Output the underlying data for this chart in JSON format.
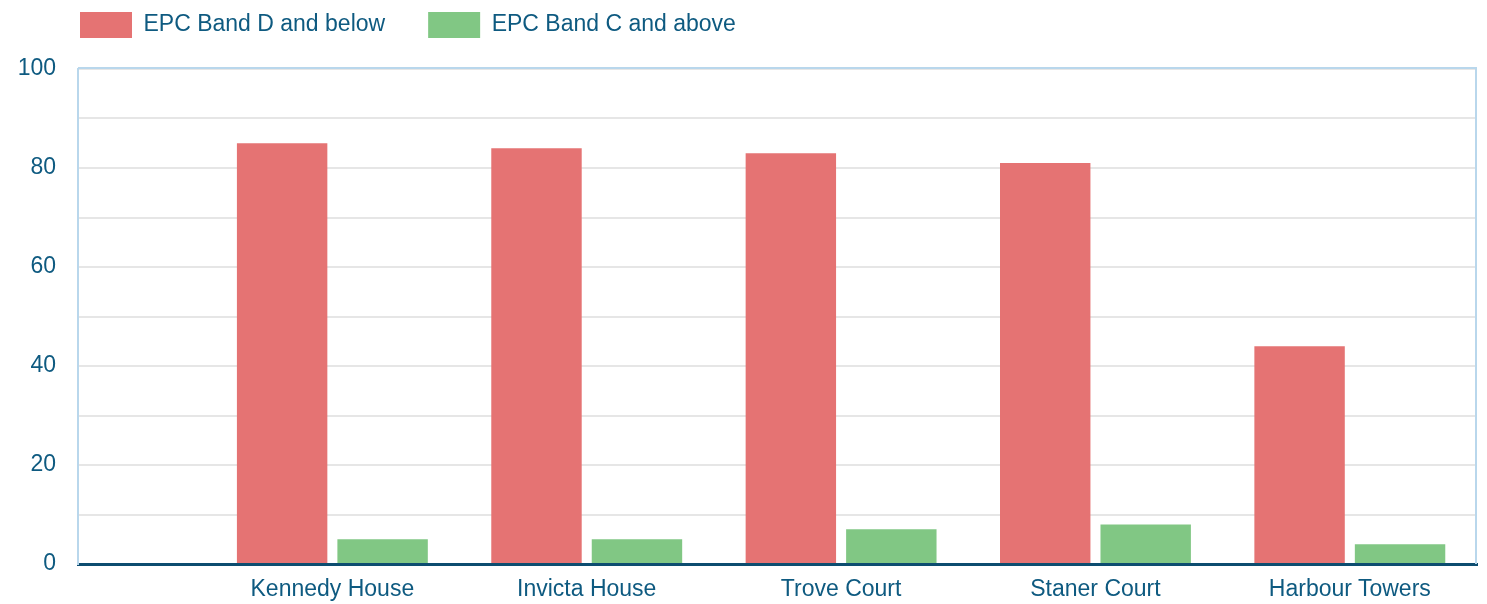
{
  "chart_data": {
    "type": "bar",
    "categories": [
      "Kennedy House",
      "Invicta House",
      "Trove Court",
      "Staner Court",
      "Harbour Towers"
    ],
    "series": [
      {
        "name": "EPC Band D and below",
        "color": "#e57373",
        "values": [
          85,
          84,
          83,
          81,
          44
        ]
      },
      {
        "name": "EPC Band C and above",
        "color": "#81c784",
        "values": [
          5,
          5,
          7,
          8,
          4
        ]
      }
    ],
    "ylim": [
      0,
      100
    ],
    "yticks": [
      0,
      {
        "value": 10,
        "label": null
      },
      20,
      {
        "value": 30,
        "label": null
      },
      40,
      {
        "value": 50,
        "label": null
      },
      60,
      {
        "value": 70,
        "label": null
      },
      80,
      {
        "value": 90,
        "label": null
      },
      100
    ],
    "grid": "y",
    "legend": "top left"
  }
}
